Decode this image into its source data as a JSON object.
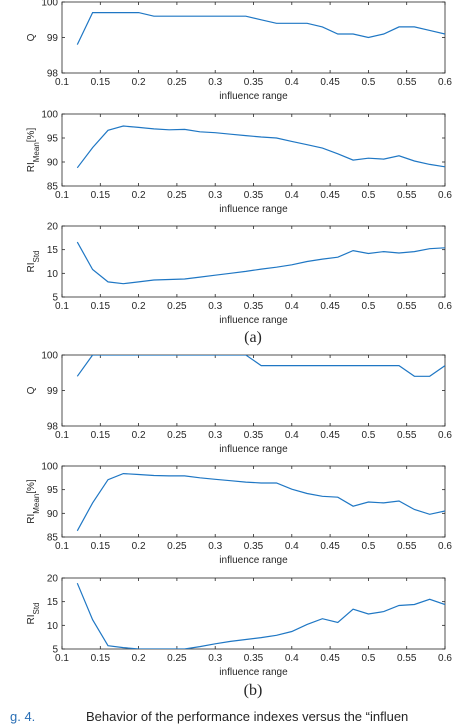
{
  "panel_labels": {
    "a": "(a)",
    "b": "(b)"
  },
  "caption": {
    "number": "g. 4.",
    "text": "Behavior of the performance indexes versus the “influen"
  },
  "colors": {
    "line": "#1f77c4",
    "axes": "#262626",
    "background": "#ffffff"
  },
  "chart_data": [
    {
      "type": "line",
      "panel": "a",
      "xlabel": "influence range",
      "ylabel": "Q",
      "xlim": [
        0.1,
        0.6
      ],
      "ylim": [
        98,
        100
      ],
      "xticks": [
        0.1,
        0.15,
        0.2,
        0.25,
        0.3,
        0.35,
        0.4,
        0.45,
        0.5,
        0.55,
        0.6
      ],
      "yticks": [
        98,
        99,
        100
      ],
      "x": [
        0.12,
        0.14,
        0.16,
        0.18,
        0.2,
        0.22,
        0.24,
        0.26,
        0.28,
        0.3,
        0.32,
        0.34,
        0.36,
        0.38,
        0.4,
        0.42,
        0.44,
        0.46,
        0.48,
        0.5,
        0.52,
        0.54,
        0.56,
        0.58,
        0.6
      ],
      "y": [
        98.8,
        99.7,
        99.7,
        99.7,
        99.7,
        99.6,
        99.6,
        99.6,
        99.6,
        99.6,
        99.6,
        99.6,
        99.5,
        99.4,
        99.4,
        99.4,
        99.3,
        99.1,
        99.1,
        99.0,
        99.1,
        99.3,
        99.3,
        99.2,
        99.1
      ]
    },
    {
      "type": "line",
      "panel": "a",
      "xlabel": "influence range",
      "ylabel": "RI_Mean[%]",
      "xlim": [
        0.1,
        0.6
      ],
      "ylim": [
        85,
        100
      ],
      "xticks": [
        0.1,
        0.15,
        0.2,
        0.25,
        0.3,
        0.35,
        0.4,
        0.45,
        0.5,
        0.55,
        0.6
      ],
      "yticks": [
        85,
        90,
        95,
        100
      ],
      "x": [
        0.12,
        0.14,
        0.16,
        0.18,
        0.2,
        0.22,
        0.24,
        0.26,
        0.28,
        0.3,
        0.32,
        0.34,
        0.36,
        0.38,
        0.4,
        0.42,
        0.44,
        0.46,
        0.48,
        0.5,
        0.52,
        0.54,
        0.56,
        0.58,
        0.6
      ],
      "y": [
        88.8,
        93.0,
        96.6,
        97.5,
        97.2,
        96.9,
        96.7,
        96.8,
        96.3,
        96.1,
        95.8,
        95.5,
        95.2,
        95.0,
        94.3,
        93.6,
        92.9,
        91.7,
        90.4,
        90.8,
        90.6,
        91.3,
        90.2,
        89.5,
        89.0
      ]
    },
    {
      "type": "line",
      "panel": "a",
      "xlabel": "influence range",
      "ylabel": "RI_Std",
      "xlim": [
        0.1,
        0.6
      ],
      "ylim": [
        5,
        20
      ],
      "xticks": [
        0.1,
        0.15,
        0.2,
        0.25,
        0.3,
        0.35,
        0.4,
        0.45,
        0.5,
        0.55,
        0.6
      ],
      "yticks": [
        5,
        10,
        15,
        20
      ],
      "x": [
        0.12,
        0.14,
        0.16,
        0.18,
        0.2,
        0.22,
        0.24,
        0.26,
        0.28,
        0.3,
        0.32,
        0.34,
        0.36,
        0.38,
        0.4,
        0.42,
        0.44,
        0.46,
        0.48,
        0.5,
        0.52,
        0.54,
        0.56,
        0.58,
        0.6
      ],
      "y": [
        16.6,
        10.8,
        8.2,
        7.8,
        8.2,
        8.6,
        8.7,
        8.8,
        9.2,
        9.6,
        10.0,
        10.4,
        10.9,
        11.3,
        11.8,
        12.5,
        13.0,
        13.4,
        14.8,
        14.2,
        14.6,
        14.3,
        14.6,
        15.2,
        15.4
      ]
    },
    {
      "type": "line",
      "panel": "b",
      "xlabel": "influence range",
      "ylabel": "Q",
      "xlim": [
        0.1,
        0.6
      ],
      "ylim": [
        98,
        100
      ],
      "xticks": [
        0.1,
        0.15,
        0.2,
        0.25,
        0.3,
        0.35,
        0.4,
        0.45,
        0.5,
        0.55,
        0.6
      ],
      "yticks": [
        98,
        99,
        100
      ],
      "x": [
        0.12,
        0.14,
        0.16,
        0.18,
        0.2,
        0.22,
        0.24,
        0.26,
        0.28,
        0.3,
        0.32,
        0.34,
        0.36,
        0.38,
        0.4,
        0.42,
        0.44,
        0.46,
        0.48,
        0.5,
        0.52,
        0.54,
        0.56,
        0.58,
        0.6
      ],
      "y": [
        99.4,
        100.0,
        100.0,
        100.0,
        100.0,
        100.0,
        100.0,
        100.0,
        100.0,
        100.0,
        100.0,
        100.0,
        99.7,
        99.7,
        99.7,
        99.7,
        99.7,
        99.7,
        99.7,
        99.7,
        99.7,
        99.7,
        99.4,
        99.4,
        99.7
      ]
    },
    {
      "type": "line",
      "panel": "b",
      "xlabel": "influence range",
      "ylabel": "RI_Mean[%]",
      "xlim": [
        0.1,
        0.6
      ],
      "ylim": [
        85,
        100
      ],
      "xticks": [
        0.1,
        0.15,
        0.2,
        0.25,
        0.3,
        0.35,
        0.4,
        0.45,
        0.5,
        0.55,
        0.6
      ],
      "yticks": [
        85,
        90,
        95,
        100
      ],
      "x": [
        0.12,
        0.14,
        0.16,
        0.18,
        0.2,
        0.22,
        0.24,
        0.26,
        0.28,
        0.3,
        0.32,
        0.34,
        0.36,
        0.38,
        0.4,
        0.42,
        0.44,
        0.46,
        0.48,
        0.5,
        0.52,
        0.54,
        0.56,
        0.58,
        0.6
      ],
      "y": [
        86.3,
        92.2,
        97.1,
        98.4,
        98.2,
        98.0,
        97.9,
        97.9,
        97.5,
        97.2,
        96.9,
        96.6,
        96.4,
        96.4,
        95.1,
        94.2,
        93.6,
        93.4,
        91.5,
        92.4,
        92.2,
        92.6,
        90.8,
        89.8,
        90.5
      ]
    },
    {
      "type": "line",
      "panel": "b",
      "xlabel": "influence range",
      "ylabel": "RI_Std",
      "xlim": [
        0.1,
        0.6
      ],
      "ylim": [
        5,
        20
      ],
      "xticks": [
        0.1,
        0.15,
        0.2,
        0.25,
        0.3,
        0.35,
        0.4,
        0.45,
        0.5,
        0.55,
        0.6
      ],
      "yticks": [
        5,
        10,
        15,
        20
      ],
      "x": [
        0.12,
        0.14,
        0.16,
        0.18,
        0.2,
        0.22,
        0.24,
        0.26,
        0.28,
        0.3,
        0.32,
        0.34,
        0.36,
        0.38,
        0.4,
        0.42,
        0.44,
        0.46,
        0.48,
        0.5,
        0.52,
        0.54,
        0.56,
        0.58,
        0.6
      ],
      "y": [
        18.9,
        11.2,
        5.7,
        5.3,
        5.0,
        5.0,
        5.0,
        5.0,
        5.5,
        6.1,
        6.6,
        7.0,
        7.4,
        7.9,
        8.7,
        10.2,
        11.4,
        10.6,
        13.4,
        12.4,
        12.9,
        14.2,
        14.4,
        15.5,
        14.4
      ]
    }
  ]
}
